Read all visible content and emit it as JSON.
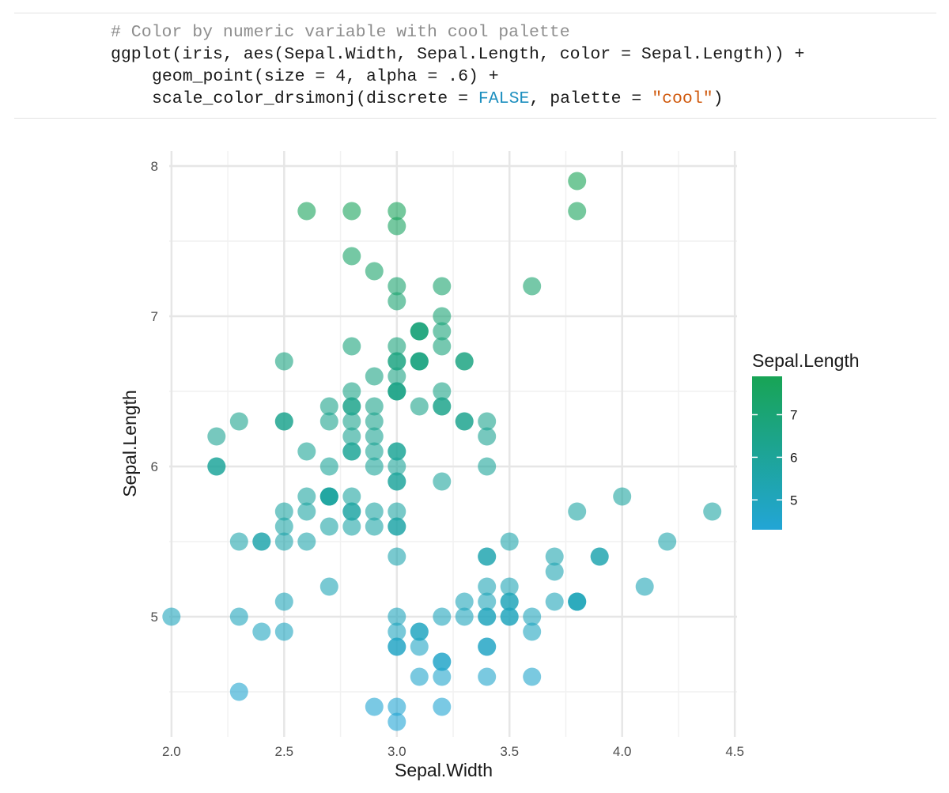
{
  "code": {
    "comment": "# Color by numeric variable with cool palette",
    "line1": "ggplot(iris, aes(Sepal.Width, Sepal.Length, color = Sepal.Length)) +",
    "line2": "geom_point(size = 4, alpha = .6) +",
    "line3_pre": "scale_color_drsimonj(discrete = ",
    "line3_kw": "FALSE",
    "line3_mid": ", palette = ",
    "line3_str": "\"cool\"",
    "line3_post": ")"
  },
  "colors": {
    "low": "#22a5d6",
    "high": "#18a455",
    "grid_major": "#e6e6e6",
    "grid_minor": "#f1f1f1",
    "axis_text": "#4d4d4d",
    "axis_title": "#1a1a1a"
  },
  "chart_data": {
    "type": "scatter",
    "title": "",
    "xlabel": "Sepal.Width",
    "ylabel": "Sepal.Length",
    "xlim": [
      1.99,
      4.51
    ],
    "ylim": [
      4.2,
      8.1
    ],
    "x_ticks": [
      2.0,
      2.5,
      3.0,
      3.5,
      4.0,
      4.5
    ],
    "x_tick_labels": [
      "2.0",
      "2.5",
      "3.0",
      "3.5",
      "4.0",
      "4.5"
    ],
    "y_ticks": [
      5,
      6,
      7,
      8
    ],
    "y_tick_labels": [
      "5",
      "6",
      "7",
      "8"
    ],
    "color_variable": "Sepal.Length",
    "color_range": [
      4.3,
      7.9
    ],
    "alpha": 0.6,
    "legend": {
      "title": "Sepal.Length",
      "ticks": [
        5,
        6,
        7
      ],
      "tick_labels": [
        "5",
        "6",
        "7"
      ],
      "position": "right"
    },
    "points": [
      [
        3.5,
        5.1
      ],
      [
        3.0,
        4.9
      ],
      [
        3.2,
        4.7
      ],
      [
        3.1,
        4.6
      ],
      [
        3.6,
        5.0
      ],
      [
        3.9,
        5.4
      ],
      [
        3.4,
        4.6
      ],
      [
        3.4,
        5.0
      ],
      [
        2.9,
        4.4
      ],
      [
        3.1,
        4.9
      ],
      [
        3.7,
        5.4
      ],
      [
        3.4,
        4.8
      ],
      [
        3.0,
        4.8
      ],
      [
        3.0,
        4.3
      ],
      [
        4.0,
        5.8
      ],
      [
        4.4,
        5.7
      ],
      [
        3.9,
        5.4
      ],
      [
        3.5,
        5.1
      ],
      [
        3.8,
        5.7
      ],
      [
        3.8,
        5.1
      ],
      [
        3.4,
        5.4
      ],
      [
        3.7,
        5.1
      ],
      [
        3.6,
        4.6
      ],
      [
        3.3,
        5.1
      ],
      [
        3.4,
        4.8
      ],
      [
        3.0,
        5.0
      ],
      [
        3.4,
        5.0
      ],
      [
        3.5,
        5.2
      ],
      [
        3.4,
        5.2
      ],
      [
        3.2,
        4.7
      ],
      [
        3.1,
        4.8
      ],
      [
        3.4,
        5.4
      ],
      [
        4.1,
        5.2
      ],
      [
        4.2,
        5.5
      ],
      [
        3.1,
        4.9
      ],
      [
        3.2,
        5.0
      ],
      [
        3.5,
        5.5
      ],
      [
        3.6,
        4.9
      ],
      [
        3.0,
        4.4
      ],
      [
        3.4,
        5.1
      ],
      [
        3.5,
        5.0
      ],
      [
        2.3,
        4.5
      ],
      [
        3.2,
        4.4
      ],
      [
        3.5,
        5.0
      ],
      [
        3.8,
        5.1
      ],
      [
        3.0,
        4.8
      ],
      [
        3.8,
        5.1
      ],
      [
        3.2,
        4.6
      ],
      [
        3.7,
        5.3
      ],
      [
        3.3,
        5.0
      ],
      [
        3.2,
        7.0
      ],
      [
        3.2,
        6.4
      ],
      [
        3.1,
        6.9
      ],
      [
        2.3,
        5.5
      ],
      [
        2.8,
        6.5
      ],
      [
        2.8,
        5.7
      ],
      [
        3.3,
        6.3
      ],
      [
        2.4,
        4.9
      ],
      [
        2.9,
        6.6
      ],
      [
        2.7,
        5.2
      ],
      [
        2.0,
        5.0
      ],
      [
        3.0,
        5.9
      ],
      [
        2.2,
        6.0
      ],
      [
        2.9,
        6.1
      ],
      [
        2.9,
        5.6
      ],
      [
        3.1,
        6.7
      ],
      [
        3.0,
        5.6
      ],
      [
        2.7,
        5.8
      ],
      [
        2.2,
        6.2
      ],
      [
        2.5,
        5.6
      ],
      [
        3.2,
        5.9
      ],
      [
        2.8,
        6.1
      ],
      [
        2.5,
        6.3
      ],
      [
        2.8,
        6.1
      ],
      [
        2.9,
        6.4
      ],
      [
        3.0,
        6.6
      ],
      [
        2.8,
        6.8
      ],
      [
        3.0,
        6.7
      ],
      [
        2.9,
        6.0
      ],
      [
        2.6,
        5.7
      ],
      [
        2.4,
        5.5
      ],
      [
        2.4,
        5.5
      ],
      [
        2.7,
        5.8
      ],
      [
        2.7,
        6.0
      ],
      [
        3.0,
        5.4
      ],
      [
        3.4,
        6.0
      ],
      [
        3.1,
        6.7
      ],
      [
        2.3,
        6.3
      ],
      [
        3.0,
        5.6
      ],
      [
        2.5,
        5.5
      ],
      [
        2.6,
        5.5
      ],
      [
        3.0,
        6.1
      ],
      [
        2.6,
        5.8
      ],
      [
        2.3,
        5.0
      ],
      [
        2.7,
        5.6
      ],
      [
        3.0,
        5.7
      ],
      [
        2.9,
        5.7
      ],
      [
        2.9,
        6.2
      ],
      [
        2.5,
        5.1
      ],
      [
        2.8,
        5.7
      ],
      [
        3.3,
        6.3
      ],
      [
        2.7,
        5.8
      ],
      [
        3.0,
        7.1
      ],
      [
        2.9,
        6.3
      ],
      [
        3.0,
        6.5
      ],
      [
        3.0,
        7.6
      ],
      [
        2.5,
        4.9
      ],
      [
        2.9,
        7.3
      ],
      [
        2.5,
        6.7
      ],
      [
        3.6,
        7.2
      ],
      [
        3.2,
        6.5
      ],
      [
        2.7,
        6.4
      ],
      [
        3.0,
        6.8
      ],
      [
        2.5,
        5.7
      ],
      [
        2.8,
        5.8
      ],
      [
        3.2,
        6.4
      ],
      [
        3.0,
        6.5
      ],
      [
        3.8,
        7.7
      ],
      [
        2.6,
        7.7
      ],
      [
        2.2,
        6.0
      ],
      [
        3.2,
        6.9
      ],
      [
        2.8,
        5.6
      ],
      [
        2.8,
        7.7
      ],
      [
        2.7,
        6.3
      ],
      [
        3.3,
        6.7
      ],
      [
        3.2,
        7.2
      ],
      [
        2.8,
        6.2
      ],
      [
        3.0,
        6.1
      ],
      [
        2.8,
        6.4
      ],
      [
        3.0,
        7.2
      ],
      [
        2.8,
        7.4
      ],
      [
        3.8,
        7.9
      ],
      [
        2.8,
        6.4
      ],
      [
        2.8,
        6.3
      ],
      [
        2.6,
        6.1
      ],
      [
        3.0,
        7.7
      ],
      [
        3.4,
        6.3
      ],
      [
        3.1,
        6.4
      ],
      [
        3.0,
        6.0
      ],
      [
        3.1,
        6.9
      ],
      [
        3.1,
        6.7
      ],
      [
        3.1,
        6.9
      ],
      [
        2.7,
        5.8
      ],
      [
        3.2,
        6.8
      ],
      [
        3.3,
        6.7
      ],
      [
        3.0,
        6.7
      ],
      [
        2.5,
        6.3
      ],
      [
        3.0,
        6.5
      ],
      [
        3.4,
        6.2
      ],
      [
        3.0,
        5.9
      ]
    ]
  }
}
